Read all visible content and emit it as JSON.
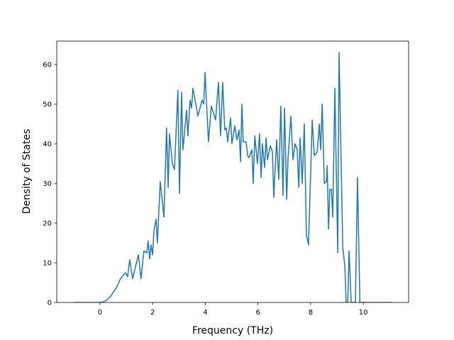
{
  "chart_data": {
    "type": "line",
    "xlabel": "Frequency (THz)",
    "ylabel": "Density of States",
    "xlim": [
      -1.64,
      11.72
    ],
    "ylim": [
      0,
      65.9
    ],
    "xticks": [
      0,
      2,
      4,
      6,
      8,
      10
    ],
    "yticks": [
      0,
      10,
      20,
      30,
      40,
      50,
      60
    ],
    "grid": false,
    "series": [
      {
        "name": "DOS",
        "color": "#1f77b4",
        "x": [
          -1.0,
          0.0,
          0.1,
          0.24,
          0.4,
          0.5,
          0.65,
          0.78,
          0.97,
          1.05,
          1.13,
          1.24,
          1.46,
          1.56,
          1.67,
          1.78,
          1.83,
          1.89,
          1.94,
          2.0,
          2.05,
          2.13,
          2.18,
          2.29,
          2.43,
          2.53,
          2.59,
          2.64,
          2.75,
          2.83,
          2.96,
          3.02,
          3.1,
          3.15,
          3.29,
          3.34,
          3.42,
          3.48,
          3.53,
          3.72,
          3.88,
          3.94,
          3.99,
          4.12,
          4.23,
          4.39,
          4.5,
          4.58,
          4.66,
          4.74,
          4.8,
          4.85,
          4.96,
          5.01,
          5.12,
          5.2,
          5.28,
          5.34,
          5.39,
          5.44,
          5.55,
          5.61,
          5.66,
          5.77,
          5.82,
          5.88,
          5.98,
          6.06,
          6.12,
          6.17,
          6.25,
          6.31,
          6.36,
          6.47,
          6.55,
          6.6,
          6.71,
          6.79,
          6.87,
          6.95,
          7.01,
          7.09,
          7.14,
          7.25,
          7.33,
          7.41,
          7.49,
          7.55,
          7.6,
          7.68,
          7.76,
          7.84,
          7.92,
          8.06,
          8.14,
          8.25,
          8.33,
          8.38,
          8.44,
          8.52,
          8.6,
          8.63,
          8.68,
          8.73,
          8.79,
          8.84,
          8.92,
          9.03,
          9.08,
          9.22,
          9.3,
          9.35,
          9.41,
          9.46,
          9.54,
          9.7,
          9.78,
          9.87,
          11.1
        ],
        "values": [
          0,
          0,
          0.1,
          0.5,
          1.5,
          2.5,
          4,
          6,
          7.5,
          6.5,
          10.8,
          6,
          12,
          6,
          13,
          12.5,
          15.5,
          11,
          14.5,
          12,
          18,
          21,
          15,
          30.5,
          21.5,
          44,
          29,
          42.5,
          35,
          33.5,
          53.5,
          27.5,
          53,
          38.5,
          48.5,
          42,
          51,
          49,
          54,
          47,
          51,
          50,
          58,
          40.5,
          49.5,
          46,
          55.5,
          42,
          55.5,
          43.5,
          44,
          40.5,
          46.5,
          40,
          44.5,
          41,
          43.5,
          35.5,
          50,
          40.5,
          40.5,
          37,
          36.5,
          38.5,
          30,
          42,
          35,
          42.5,
          31.5,
          40,
          34,
          41.5,
          36,
          39.5,
          38,
          26.5,
          41,
          31,
          49.5,
          27,
          49,
          26,
          36,
          47,
          36,
          40,
          38.5,
          29,
          41.5,
          30,
          45,
          17,
          14.5,
          46,
          37,
          38,
          45,
          38.5,
          50,
          30,
          30.5,
          34.5,
          18.5,
          28.5,
          28.5,
          21.5,
          54,
          12.5,
          63,
          14,
          9,
          0,
          0,
          13,
          0,
          0,
          31.5,
          0,
          0
        ]
      }
    ]
  }
}
